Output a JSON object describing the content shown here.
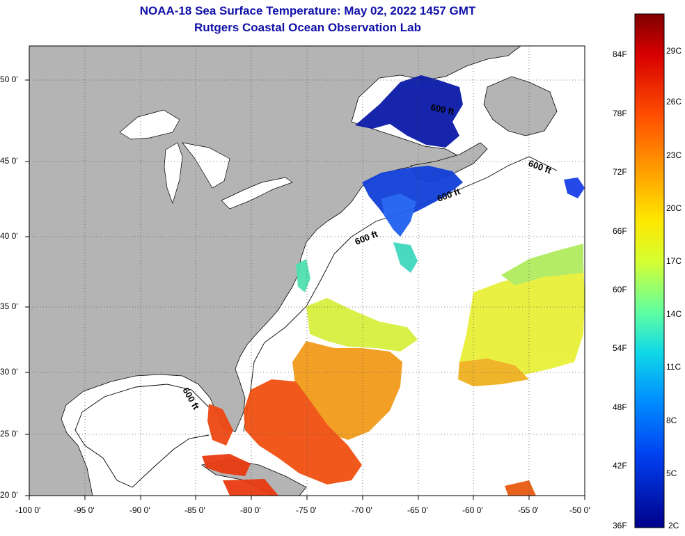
{
  "header": {
    "title": "NOAA-18 Sea Surface Temperature:  May 02, 2022 1457 GMT",
    "subtitle": "Rutgers Coastal Ocean Observation Lab"
  },
  "map": {
    "lon_range": [
      -100,
      -50
    ],
    "lat_range": [
      20,
      52.5
    ],
    "lon_ticks": [
      "-100 0'",
      "-95 0'",
      "-90 0'",
      "-85 0'",
      "-80 0'",
      "-75 0'",
      "-70 0'",
      "-65 0'",
      "-60 0'",
      "-55 0'",
      "-50 0'"
    ],
    "lat_ticks": [
      "20 0'",
      "25 0'",
      "30 0'",
      "35 0'",
      "40 0'",
      "45 0'",
      "50 0'"
    ],
    "grid": "dotted",
    "land_color": "#b4b4b4",
    "no_data_color": "#ffffff",
    "isobath_labels": [
      "600 ft",
      "600 ft",
      "600 ft",
      "600 ft",
      "600 ft"
    ]
  },
  "colorbar": {
    "fahrenheit_labels": [
      "84F",
      "78F",
      "72F",
      "66F",
      "60F",
      "54F",
      "48F",
      "42F",
      "36F"
    ],
    "celsius_labels": [
      "29C",
      "26C",
      "23C",
      "20C",
      "17C",
      "14C",
      "11C",
      "8C",
      "5C",
      "2C"
    ],
    "colors": [
      "#800000",
      "#e00000",
      "#ff5000",
      "#ff9a00",
      "#ffe600",
      "#d8ff30",
      "#80ff80",
      "#20e0e0",
      "#00a0ff",
      "#0050ff",
      "#0020d0",
      "#000080"
    ]
  }
}
